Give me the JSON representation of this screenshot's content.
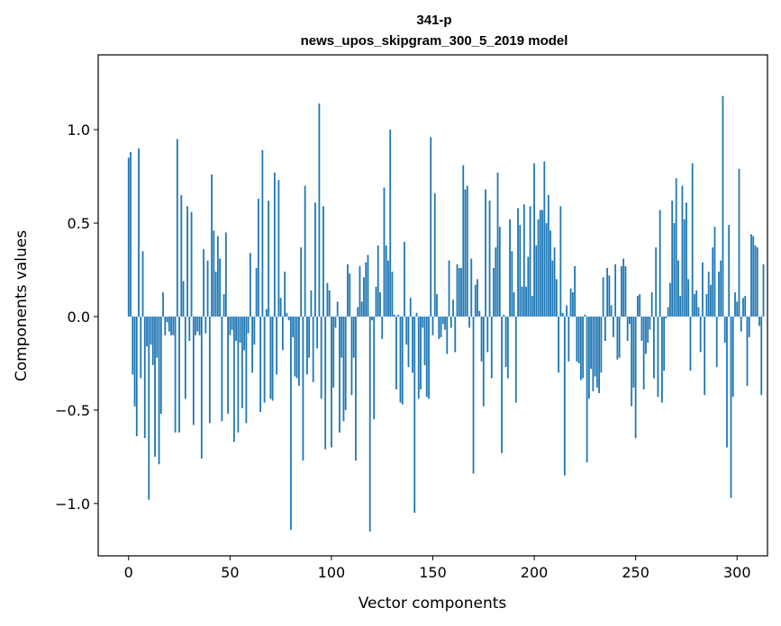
{
  "chart_data": {
    "type": "bar",
    "title": "341-p",
    "subtitle": "news_upos_skipgram_300_5_2019 model",
    "xlabel": "Vector components",
    "ylabel": "Components values",
    "xlim": [
      -15,
      315
    ],
    "ylim": [
      -1.28,
      1.4
    ],
    "xticks": [
      0,
      50,
      100,
      150,
      200,
      250,
      300
    ],
    "yticks": [
      -1.0,
      -0.5,
      0.0,
      0.5,
      1.0
    ],
    "ytick_labels": [
      "−1.0",
      "−0.5",
      "0.0",
      "0.5",
      "1.0"
    ],
    "bar_color": "#1f77b4",
    "grid": false,
    "values": [
      0.85,
      0.88,
      -0.31,
      -0.48,
      -0.64,
      0.9,
      -0.33,
      0.35,
      -0.65,
      -0.16,
      -0.98,
      -0.15,
      -0.26,
      -0.75,
      -0.22,
      -0.79,
      -0.52,
      0.13,
      -0.1,
      -0.03,
      -0.08,
      -0.1,
      -0.1,
      -0.62,
      0.95,
      -0.62,
      0.65,
      0.19,
      -0.44,
      0.59,
      -0.13,
      0.56,
      -0.58,
      -0.1,
      -0.08,
      -0.1,
      -0.76,
      0.36,
      -0.09,
      0.3,
      -0.57,
      0.76,
      0.46,
      0.24,
      0.43,
      0.31,
      -0.56,
      0.12,
      0.45,
      -0.52,
      -0.1,
      -0.07,
      -0.67,
      -0.13,
      -0.62,
      -0.14,
      -0.49,
      -0.18,
      -0.57,
      -0.09,
      0.34,
      -0.3,
      -0.15,
      0.26,
      0.63,
      -0.51,
      0.89,
      -0.46,
      0.04,
      0.62,
      -0.44,
      -0.45,
      0.77,
      -0.31,
      0.73,
      0.1,
      -0.18,
      0.24,
      0.02,
      -0.02,
      -1.14,
      -0.11,
      -0.32,
      -0.33,
      -0.37,
      0.37,
      -0.77,
      0.7,
      -0.31,
      -0.22,
      0.14,
      -0.35,
      0.61,
      -0.17,
      1.14,
      -0.44,
      0.59,
      -0.71,
      0.18,
      0.14,
      -0.7,
      -0.38,
      -0.06,
      0.08,
      -0.62,
      -0.22,
      -0.56,
      -0.5,
      0.28,
      0.23,
      -0.42,
      -0.22,
      -0.77,
      0.05,
      0.27,
      0.08,
      0.21,
      0.29,
      0.33,
      -1.15,
      -0.02,
      -0.55,
      0.16,
      0.38,
      0.13,
      -0.12,
      0.69,
      0.38,
      0.3,
      1.0,
      0.24,
      0.01,
      -0.39,
      0.01,
      -0.46,
      -0.47,
      0.4,
      -0.15,
      -0.27,
      0.1,
      -0.3,
      -1.05,
      0.02,
      -0.44,
      -0.39,
      -0.06,
      -0.26,
      -0.43,
      -0.44,
      0.96,
      -0.1,
      0.66,
      0.12,
      -0.12,
      -0.11,
      -0.04,
      -0.07,
      -0.2,
      0.3,
      -0.06,
      0.09,
      -0.19,
      0.28,
      0.26,
      0.26,
      0.81,
      0.68,
      0.7,
      -0.06,
      0.31,
      -0.84,
      0.17,
      0.2,
      0.03,
      -0.24,
      -0.48,
      0.68,
      -0.19,
      0.62,
      -0.33,
      0.26,
      0.37,
      0.77,
      0.48,
      -0.73,
      0.01,
      -0.27,
      -0.33,
      0.52,
      0.35,
      0.13,
      -0.46,
      0.58,
      0.49,
      0.16,
      0.6,
      0.16,
      0.32,
      0.59,
      0.11,
      0.82,
      0.38,
      0.52,
      0.57,
      0.57,
      0.83,
      0.5,
      0.65,
      0.46,
      0.3,
      0.37,
      0.2,
      -0.3,
      0.59,
      0.02,
      -0.85,
      0.06,
      -0.24,
      0.15,
      0.13,
      0.27,
      -0.24,
      -0.25,
      -0.34,
      -0.33,
      0.01,
      -0.78,
      -0.44,
      -0.28,
      -0.4,
      -0.32,
      -0.38,
      -0.41,
      -0.3,
      0.21,
      -0.13,
      0.26,
      0.22,
      0.06,
      -0.11,
      0.28,
      -0.23,
      -0.22,
      0.27,
      0.31,
      0.27,
      -0.13,
      -0.04,
      -0.48,
      -0.38,
      -0.65,
      0.11,
      0.12,
      -0.13,
      -0.39,
      -0.2,
      -0.14,
      -0.07,
      0.13,
      -0.33,
      0.37,
      -0.43,
      0.57,
      -0.46,
      -0.29,
      -0.01,
      0.05,
      0.18,
      0.62,
      0.5,
      0.74,
      0.3,
      0.11,
      0.7,
      0.52,
      0.61,
      0.2,
      -0.29,
      0.82,
      0.12,
      0.14,
      0.05,
      -0.19,
      0.29,
      -0.42,
      0.12,
      0.24,
      0.17,
      0.37,
      0.48,
      -0.27,
      0.24,
      0.3,
      1.18,
      -0.14,
      -0.7,
      0.49,
      -0.97,
      -0.43,
      0.13,
      0.08,
      0.79,
      -0.08,
      0.1,
      0.11,
      -0.37,
      -0.11,
      0.44,
      0.43,
      0.38,
      0.37,
      -0.05,
      -0.42,
      0.28
    ]
  }
}
